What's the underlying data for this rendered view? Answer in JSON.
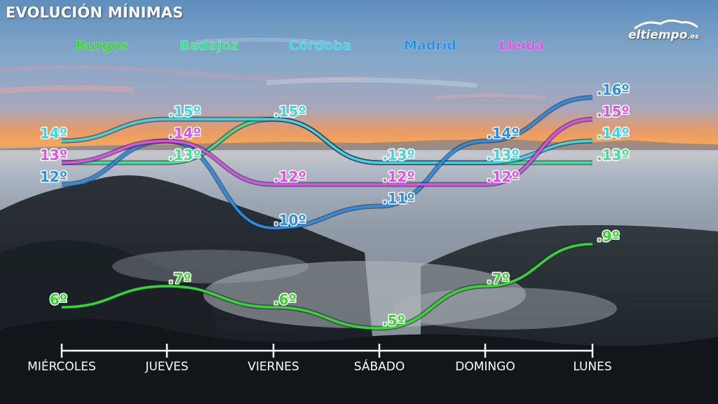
{
  "title": "EVOLUCIÓN MÍNIMAS",
  "logo": {
    "name": "eltiempo",
    "domain": ".es"
  },
  "chart_data": {
    "type": "line",
    "title": "EVOLUCIÓN MÍNIMAS",
    "unit": "º",
    "categories": [
      "MIÉRCOLES",
      "JUEVES",
      "VIERNES",
      "SÁBADO",
      "DOMINGO",
      "LUNES"
    ],
    "series": [
      {
        "name": "Burgos",
        "color": "#39d62f",
        "values": [
          6,
          7,
          6,
          5,
          7,
          9
        ]
      },
      {
        "name": "Badajoz",
        "color": "#3fe08e",
        "values": [
          13,
          13,
          15,
          13,
          13,
          13
        ]
      },
      {
        "name": "Córdoba",
        "color": "#3ed4e6",
        "values": [
          14,
          15,
          15,
          13,
          13,
          14
        ]
      },
      {
        "name": "Madrid",
        "color": "#2a8fe6",
        "values": [
          12,
          14,
          10,
          11,
          14,
          16
        ]
      },
      {
        "name": "Lleida",
        "color": "#e04fe8",
        "values": [
          13,
          14,
          12,
          12,
          12,
          15
        ]
      }
    ],
    "legend_position": "top",
    "grid": false
  }
}
